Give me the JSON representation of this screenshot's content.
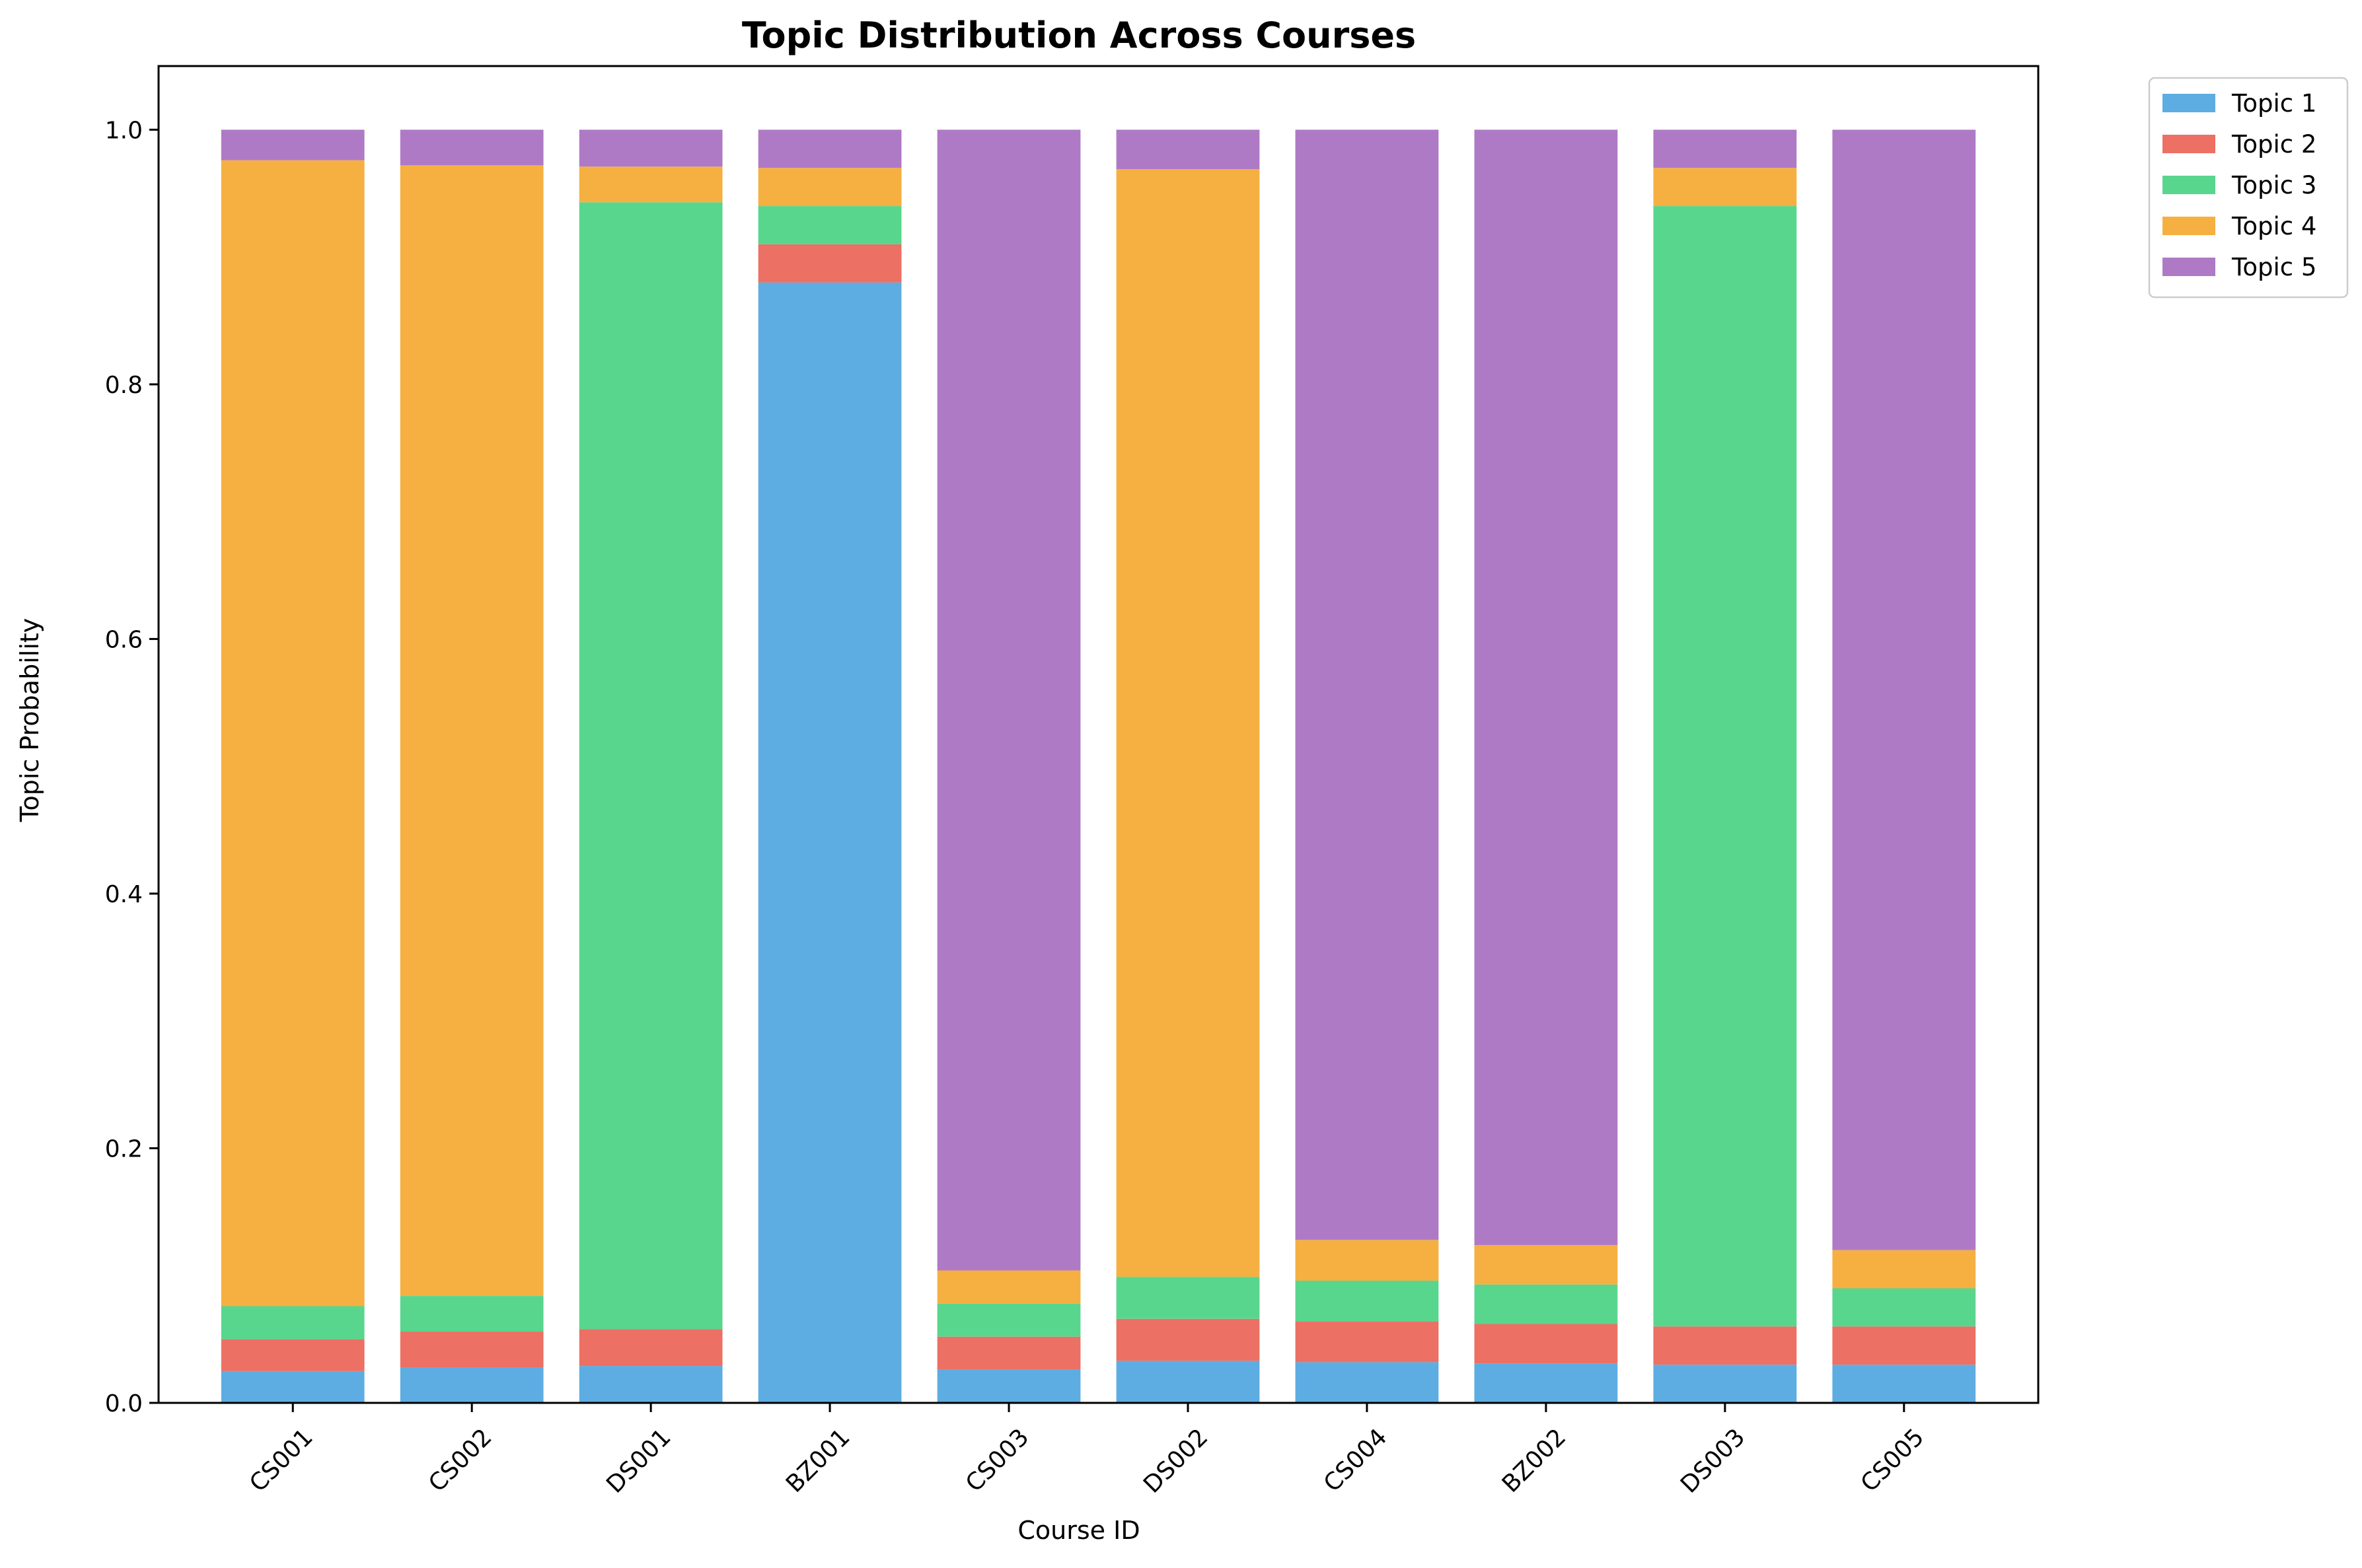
{
  "chart_data": {
    "type": "bar",
    "stacked": true,
    "title": "Topic Distribution Across Courses",
    "xlabel": "Course ID",
    "ylabel": "Topic Probability",
    "ylim": [
      0,
      1.05
    ],
    "yticks": [
      "0.0",
      "0.2",
      "0.4",
      "0.6",
      "0.8",
      "1.0"
    ],
    "categories": [
      "CS001",
      "CS002",
      "DS001",
      "BZ001",
      "CS003",
      "DS002",
      "CS004",
      "BZ002",
      "DS003",
      "CS005"
    ],
    "series": [
      {
        "name": "Topic 1",
        "color": "#5dade2",
        "values": [
          0.025,
          0.028,
          0.029,
          0.88,
          0.026,
          0.033,
          0.032,
          0.031,
          0.03,
          0.03
        ]
      },
      {
        "name": "Topic 2",
        "color": "#ec7063",
        "values": [
          0.025,
          0.028,
          0.029,
          0.03,
          0.026,
          0.033,
          0.032,
          0.031,
          0.03,
          0.03
        ]
      },
      {
        "name": "Topic 3",
        "color": "#58d68d",
        "values": [
          0.026,
          0.028,
          0.885,
          0.03,
          0.026,
          0.033,
          0.032,
          0.031,
          0.88,
          0.03
        ]
      },
      {
        "name": "Topic 4",
        "color": "#f5b041",
        "values": [
          0.9,
          0.888,
          0.028,
          0.03,
          0.026,
          0.87,
          0.032,
          0.031,
          0.03,
          0.03
        ]
      },
      {
        "name": "Topic 5",
        "color": "#af7ac5",
        "values": [
          0.024,
          0.028,
          0.029,
          0.03,
          0.896,
          0.031,
          0.872,
          0.876,
          0.03,
          0.88
        ]
      }
    ],
    "legend": "top-right, outside plot",
    "grid": false
  }
}
